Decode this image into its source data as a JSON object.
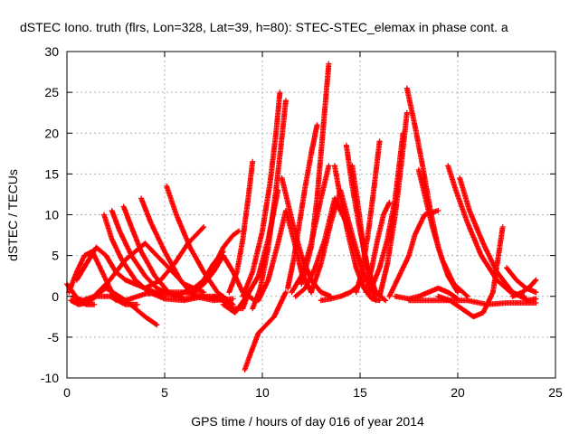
{
  "chart_data": {
    "type": "scatter",
    "title": "dSTEC Iono. truth (flrs, Lon=328, Lat=39, h=80): STEC-STEC_elemax in phase cont. a",
    "xlabel": "GPS time / hours of day 016 of year 2014",
    "ylabel": "dSTEC  / TECUs",
    "xlim": [
      0,
      25
    ],
    "ylim": [
      -10,
      30
    ],
    "xticks": [
      0,
      5,
      10,
      15,
      20,
      25
    ],
    "yticks": [
      -10,
      -5,
      0,
      5,
      10,
      15,
      20,
      25,
      30
    ],
    "grid": true,
    "marker": "+",
    "color": "#ff0000",
    "series": [
      {
        "x": [
          0.0,
          0.3,
          0.6,
          1.0,
          1.4
        ],
        "y": [
          1.5,
          0.5,
          -0.5,
          -1.0,
          -1.0
        ]
      },
      {
        "x": [
          0.1,
          0.5,
          0.9,
          1.3,
          1.8,
          2.5
        ],
        "y": [
          0.5,
          3.0,
          5.0,
          5.5,
          3.0,
          -0.5
        ]
      },
      {
        "x": [
          0.3,
          0.8,
          1.4,
          2.0,
          3.0,
          4.0,
          4.6
        ],
        "y": [
          0.0,
          -0.5,
          0.0,
          1.0,
          -0.5,
          -2.5,
          -3.5
        ]
      },
      {
        "x": [
          0.2,
          0.6,
          1.0,
          1.5,
          2.2,
          3.0,
          3.6
        ],
        "y": [
          -0.5,
          -1.0,
          -0.8,
          0.0,
          0.0,
          -1.0,
          -1.0
        ]
      },
      {
        "x": [
          0.5,
          1.0,
          1.5,
          2.0,
          2.5,
          3.0,
          3.5,
          4.0,
          4.5,
          5.0
        ],
        "y": [
          2.0,
          4.0,
          6.0,
          5.0,
          3.0,
          2.0,
          1.5,
          1.0,
          0.5,
          0.0
        ]
      },
      {
        "x": [
          1.9,
          2.3,
          2.8,
          3.5,
          4.2,
          5.0,
          6.0,
          7.0,
          8.0
        ],
        "y": [
          10.0,
          7.0,
          4.5,
          2.0,
          0.5,
          -0.3,
          -0.5,
          0.0,
          0.0
        ]
      },
      {
        "x": [
          2.3,
          2.7,
          3.3,
          4.0,
          4.6,
          5.2,
          5.8
        ],
        "y": [
          10.5,
          8.0,
          5.0,
          2.5,
          1.0,
          0.3,
          0.0
        ]
      },
      {
        "x": [
          2.9,
          3.3,
          3.8,
          4.5,
          5.2,
          6.0,
          7.0
        ],
        "y": [
          11.0,
          8.5,
          5.5,
          2.5,
          0.5,
          -0.3,
          0.0
        ]
      },
      {
        "x": [
          3.8,
          4.3,
          5.0,
          5.8,
          6.5,
          7.5,
          8.5
        ],
        "y": [
          12.0,
          9.0,
          5.5,
          2.0,
          0.0,
          -0.5,
          -0.3
        ]
      },
      {
        "x": [
          1.5,
          2.2,
          3.0,
          4.0,
          5.0,
          6.0,
          7.0
        ],
        "y": [
          0.3,
          2.0,
          4.5,
          6.5,
          4.0,
          1.5,
          0.5
        ]
      },
      {
        "x": [
          5.1,
          5.6,
          6.3,
          7.0,
          7.7,
          8.5
        ],
        "y": [
          13.5,
          10.0,
          6.0,
          3.0,
          0.5,
          -1.0
        ]
      },
      {
        "x": [
          4.0,
          4.8,
          5.5,
          6.2,
          7.0
        ],
        "y": [
          1.0,
          2.0,
          4.0,
          6.5,
          8.5
        ]
      },
      {
        "x": [
          5.5,
          6.0,
          6.5,
          7.0,
          7.5,
          8.0
        ],
        "y": [
          0.0,
          0.5,
          1.0,
          2.0,
          4.0,
          5.5
        ]
      },
      {
        "x": [
          6.5,
          7.0,
          7.5,
          8.0,
          8.5,
          9.0,
          9.5
        ],
        "y": [
          0.5,
          1.5,
          3.0,
          5.0,
          3.0,
          0.5,
          -0.3
        ]
      },
      {
        "x": [
          7.0,
          7.6,
          8.0,
          8.5,
          8.8
        ],
        "y": [
          2.0,
          4.0,
          6.0,
          7.5,
          8.0
        ]
      },
      {
        "x": [
          7.5,
          8.0,
          8.5,
          9.0,
          9.3
        ],
        "y": [
          0.0,
          -0.5,
          -1.5,
          -1.5,
          0.5
        ]
      },
      {
        "x": [
          8.3,
          8.7,
          9.0,
          9.3,
          9.5
        ],
        "y": [
          0.5,
          3.0,
          7.0,
          12.5,
          16.5
        ]
      },
      {
        "x": [
          8.0,
          8.6,
          9.2,
          9.8,
          10.3,
          10.8
        ],
        "y": [
          -1.0,
          -2.0,
          0.0,
          2.5,
          7.0,
          13.0
        ]
      },
      {
        "x": [
          9.1,
          9.4,
          9.8,
          10.2,
          10.6,
          10.9,
          11.2
        ],
        "y": [
          -9.0,
          -7.0,
          -4.5,
          -3.5,
          -2.5,
          -1.0,
          0.5
        ]
      },
      {
        "x": [
          9.0,
          9.5,
          10.0,
          10.4,
          10.7,
          10.9
        ],
        "y": [
          0.0,
          3.0,
          8.0,
          14.0,
          20.0,
          25.0
        ]
      },
      {
        "x": [
          9.5,
          9.9,
          10.3,
          10.7,
          11.0,
          11.2
        ],
        "y": [
          -1.5,
          1.0,
          6.0,
          13.0,
          19.5,
          24.0
        ]
      },
      {
        "x": [
          9.8,
          10.3,
          10.8,
          11.2,
          11.6,
          12.0,
          12.5
        ],
        "y": [
          -0.5,
          2.0,
          6.5,
          10.5,
          7.0,
          3.0,
          0.5
        ]
      },
      {
        "x": [
          11.0,
          11.3,
          11.6,
          12.0,
          12.5,
          13.0,
          13.5
        ],
        "y": [
          14.5,
          11.5,
          8.5,
          5.0,
          2.0,
          0.5,
          0.0
        ]
      },
      {
        "x": [
          11.3,
          11.6,
          11.9,
          12.2,
          12.5,
          12.8
        ],
        "y": [
          1.0,
          4.5,
          9.0,
          13.5,
          17.5,
          21.0
        ]
      },
      {
        "x": [
          11.5,
          12.0,
          12.5,
          13.0,
          13.4
        ],
        "y": [
          0.5,
          2.5,
          6.5,
          12.0,
          16.0
        ]
      },
      {
        "x": [
          12.0,
          12.5,
          12.8,
          13.0,
          13.2,
          13.4
        ],
        "y": [
          1.5,
          6.0,
          12.0,
          17.5,
          23.0,
          28.5
        ]
      },
      {
        "x": [
          11.7,
          12.2,
          12.7,
          13.2,
          13.7,
          14.3,
          15.0
        ],
        "y": [
          0.0,
          1.0,
          3.5,
          7.0,
          12.0,
          9.0,
          4.0
        ]
      },
      {
        "x": [
          12.5,
          13.0,
          13.5,
          14.0,
          14.6,
          15.2,
          16.0
        ],
        "y": [
          0.5,
          4.0,
          9.0,
          13.0,
          7.5,
          2.5,
          0.0
        ]
      },
      {
        "x": [
          13.7,
          14.0,
          14.4,
          14.8,
          15.2,
          15.6,
          16.0
        ],
        "y": [
          16.0,
          12.0,
          7.5,
          3.5,
          1.0,
          -0.3,
          -0.5
        ]
      },
      {
        "x": [
          14.3,
          14.6,
          15.0,
          15.4,
          15.8,
          16.3
        ],
        "y": [
          18.5,
          13.5,
          8.0,
          3.5,
          0.5,
          -0.5
        ]
      },
      {
        "x": [
          14.6,
          14.9,
          15.2,
          15.5,
          15.8
        ],
        "y": [
          16.0,
          11.0,
          5.5,
          1.5,
          -0.5
        ]
      },
      {
        "x": [
          14.8,
          15.1,
          15.4,
          15.7,
          16.0
        ],
        "y": [
          0.5,
          3.0,
          7.5,
          13.0,
          19.0
        ]
      },
      {
        "x": [
          15.3,
          15.6,
          15.9,
          16.2,
          16.5
        ],
        "y": [
          0.5,
          3.5,
          7.0,
          10.0,
          11.5
        ]
      },
      {
        "x": [
          15.5,
          16.0,
          16.4,
          16.8,
          17.0,
          17.2
        ],
        "y": [
          0.5,
          3.5,
          7.0,
          12.0,
          16.0,
          20.0
        ]
      },
      {
        "x": [
          16.0,
          16.4,
          16.8,
          17.1,
          17.4
        ],
        "y": [
          0.0,
          4.0,
          10.0,
          16.0,
          22.5
        ]
      },
      {
        "x": [
          16.5,
          17.0,
          17.5,
          17.8,
          18.3,
          19.0
        ],
        "y": [
          0.0,
          2.5,
          5.0,
          7.5,
          10.0,
          10.5
        ]
      },
      {
        "x": [
          17.4,
          17.8,
          18.2,
          18.6,
          19.0,
          19.5,
          20.0
        ],
        "y": [
          25.5,
          21.0,
          16.0,
          10.5,
          6.0,
          2.5,
          0.5
        ]
      },
      {
        "x": [
          18.0,
          18.3,
          18.7,
          19.2,
          19.8,
          20.5
        ],
        "y": [
          15.5,
          12.5,
          8.5,
          4.5,
          1.5,
          0.0
        ]
      },
      {
        "x": [
          16.8,
          17.5,
          18.0,
          18.5,
          19.0,
          19.5,
          20.0
        ],
        "y": [
          0.0,
          -0.3,
          0.0,
          0.5,
          1.0,
          0.5,
          -0.3
        ]
      },
      {
        "x": [
          19.5,
          19.9,
          20.5,
          21.2,
          22.0,
          22.7,
          23.4
        ],
        "y": [
          16.0,
          13.0,
          9.0,
          5.0,
          2.0,
          0.5,
          0.0
        ]
      },
      {
        "x": [
          20.1,
          20.6,
          21.3,
          22.0,
          22.8,
          23.6,
          24.0
        ],
        "y": [
          14.5,
          10.5,
          6.5,
          3.0,
          0.5,
          -0.5,
          -0.3
        ]
      },
      {
        "x": [
          19.0,
          19.6,
          20.2,
          20.8,
          21.3,
          21.8,
          22.3
        ],
        "y": [
          0.0,
          -0.5,
          -1.5,
          -2.5,
          -2.0,
          0.5,
          8.5
        ]
      },
      {
        "x": [
          17.5,
          18.5,
          19.5,
          20.5,
          21.5,
          22.5,
          23.5,
          24.0
        ],
        "y": [
          -0.5,
          -0.5,
          -0.5,
          -0.5,
          -1.0,
          -0.8,
          -0.8,
          -0.8
        ]
      },
      {
        "x": [
          22.5,
          23.0,
          23.5,
          24.0
        ],
        "y": [
          3.5,
          2.0,
          1.0,
          0.5
        ]
      },
      {
        "x": [
          22.8,
          23.3,
          23.7,
          24.0
        ],
        "y": [
          0.0,
          0.5,
          1.2,
          2.0
        ]
      },
      {
        "x": [
          13.0,
          13.5,
          14.0,
          14.5,
          15.0,
          15.5
        ],
        "y": [
          -0.5,
          -0.3,
          0.0,
          0.5,
          1.5,
          2.5
        ]
      },
      {
        "x": [
          3.0,
          4.0,
          5.0,
          6.0,
          7.0,
          8.0
        ],
        "y": [
          -0.5,
          0.3,
          0.5,
          0.5,
          0.0,
          -0.5
        ]
      }
    ]
  }
}
